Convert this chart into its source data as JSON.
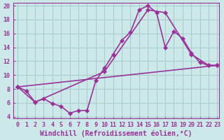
{
  "background_color": "#cce8e8",
  "grid_color": "#aacccc",
  "line_color": "#993399",
  "marker": "D",
  "markersize": 3,
  "linewidth": 1.2,
  "xlabel": "Windchill (Refroidissement éolien,°C)",
  "xlim": [
    -0.5,
    23.2
  ],
  "ylim": [
    3.8,
    20.4
  ],
  "yticks": [
    4,
    6,
    8,
    10,
    12,
    14,
    16,
    18,
    20
  ],
  "xticks": [
    0,
    1,
    2,
    3,
    4,
    5,
    6,
    7,
    8,
    9,
    10,
    11,
    12,
    13,
    14,
    15,
    16,
    17,
    18,
    19,
    20,
    21,
    22,
    23
  ],
  "line1_x": [
    0,
    1,
    2,
    3,
    4,
    5,
    6,
    7,
    8,
    9,
    10,
    11,
    12,
    13,
    14,
    15,
    16,
    17,
    18,
    19,
    20,
    21,
    22,
    23
  ],
  "line1_y": [
    8.3,
    7.7,
    6.1,
    6.6,
    5.9,
    5.5,
    4.5,
    4.9,
    4.9,
    9.2,
    11.0,
    13.0,
    15.0,
    16.2,
    19.4,
    20.0,
    19.0,
    14.0,
    16.3,
    15.3,
    13.2,
    11.8,
    11.4,
    11.4
  ],
  "line2_x": [
    0,
    2,
    10,
    15,
    17,
    20,
    22,
    23
  ],
  "line2_y": [
    8.3,
    6.1,
    10.5,
    19.4,
    19.0,
    13.0,
    11.4,
    11.4
  ],
  "line3_x": [
    0,
    23
  ],
  "line3_y": [
    8.3,
    11.4
  ],
  "font_color": "#993399",
  "tick_fontsize": 6,
  "xlabel_fontsize": 7
}
